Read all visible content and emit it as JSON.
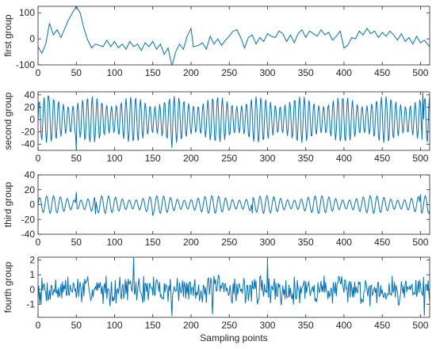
{
  "chart_data": [
    {
      "type": "line",
      "ylabel": "first group",
      "xlabel": "",
      "xlim": [
        0,
        512
      ],
      "ylim": [
        -100,
        125
      ],
      "xticks": [
        0,
        50,
        100,
        150,
        200,
        250,
        300,
        350,
        400,
        450,
        500
      ],
      "yticks": [
        -100,
        0,
        100
      ],
      "color": "#0072BD",
      "points": [
        [
          0,
          -30
        ],
        [
          5,
          -55
        ],
        [
          10,
          -20
        ],
        [
          15,
          60
        ],
        [
          20,
          15
        ],
        [
          25,
          35
        ],
        [
          30,
          5
        ],
        [
          35,
          40
        ],
        [
          40,
          75
        ],
        [
          45,
          100
        ],
        [
          50,
          125
        ],
        [
          55,
          100
        ],
        [
          60,
          40
        ],
        [
          65,
          -5
        ],
        [
          70,
          -35
        ],
        [
          75,
          -20
        ],
        [
          80,
          -25
        ],
        [
          85,
          -30
        ],
        [
          90,
          -5
        ],
        [
          95,
          -30
        ],
        [
          100,
          -10
        ],
        [
          105,
          -35
        ],
        [
          110,
          -20
        ],
        [
          115,
          -40
        ],
        [
          120,
          -10
        ],
        [
          125,
          -30
        ],
        [
          130,
          -20
        ],
        [
          135,
          -45
        ],
        [
          140,
          -15
        ],
        [
          145,
          -30
        ],
        [
          150,
          -10
        ],
        [
          155,
          -40
        ],
        [
          160,
          -20
        ],
        [
          165,
          -60
        ],
        [
          170,
          -35
        ],
        [
          175,
          -105
        ],
        [
          180,
          -50
        ],
        [
          185,
          -20
        ],
        [
          190,
          -40
        ],
        [
          195,
          10
        ],
        [
          200,
          40
        ],
        [
          203,
          -30
        ],
        [
          210,
          -25
        ],
        [
          215,
          -15
        ],
        [
          220,
          -40
        ],
        [
          225,
          10
        ],
        [
          230,
          -20
        ],
        [
          235,
          0
        ],
        [
          240,
          -25
        ],
        [
          245,
          -5
        ],
        [
          250,
          10
        ],
        [
          255,
          30
        ],
        [
          260,
          35
        ],
        [
          265,
          5
        ],
        [
          270,
          -35
        ],
        [
          275,
          5
        ],
        [
          280,
          15
        ],
        [
          285,
          -20
        ],
        [
          290,
          5
        ],
        [
          295,
          -10
        ],
        [
          300,
          20
        ],
        [
          305,
          10
        ],
        [
          310,
          5
        ],
        [
          315,
          30
        ],
        [
          320,
          20
        ],
        [
          325,
          -10
        ],
        [
          330,
          15
        ],
        [
          335,
          -15
        ],
        [
          340,
          20
        ],
        [
          345,
          35
        ],
        [
          350,
          5
        ],
        [
          355,
          30
        ],
        [
          360,
          20
        ],
        [
          365,
          10
        ],
        [
          370,
          35
        ],
        [
          375,
          15
        ],
        [
          380,
          25
        ],
        [
          385,
          -5
        ],
        [
          390,
          10
        ],
        [
          395,
          30
        ],
        [
          400,
          -35
        ],
        [
          405,
          -25
        ],
        [
          410,
          5
        ],
        [
          415,
          0
        ],
        [
          420,
          30
        ],
        [
          425,
          15
        ],
        [
          430,
          40
        ],
        [
          435,
          20
        ],
        [
          440,
          30
        ],
        [
          445,
          5
        ],
        [
          450,
          25
        ],
        [
          455,
          10
        ],
        [
          460,
          30
        ],
        [
          465,
          15
        ],
        [
          470,
          -5
        ],
        [
          475,
          20
        ],
        [
          480,
          -10
        ],
        [
          485,
          5
        ],
        [
          490,
          -20
        ],
        [
          495,
          10
        ],
        [
          500,
          -15
        ],
        [
          505,
          -5
        ],
        [
          512,
          -30
        ]
      ]
    },
    {
      "type": "line",
      "ylabel": "second group",
      "xlabel": "",
      "xlim": [
        0,
        512
      ],
      "ylim": [
        -50,
        45
      ],
      "xticks": [
        0,
        50,
        100,
        150,
        200,
        250,
        300,
        350,
        400,
        450,
        500
      ],
      "yticks": [
        -40,
        -20,
        0,
        20,
        40
      ],
      "color": "#0072BD",
      "signal": {
        "period": 6.3,
        "base_amplitude": 30,
        "modulation_amplitude": 8,
        "modulation_period": 55,
        "x_start": 0,
        "x_end": 512,
        "step": 1
      },
      "spikes": [
        [
          13,
          38
        ],
        [
          50,
          -48
        ],
        [
          175,
          -46
        ],
        [
          503,
          44
        ]
      ]
    },
    {
      "type": "line",
      "ylabel": "third group",
      "xlabel": "",
      "xlim": [
        0,
        512
      ],
      "ylim": [
        -40,
        40
      ],
      "xticks": [
        0,
        50,
        100,
        150,
        200,
        250,
        300,
        350,
        400,
        450,
        500
      ],
      "yticks": [
        -40,
        -20,
        0,
        20,
        40
      ],
      "color": "#0072BD",
      "signal": {
        "period": 9,
        "base_amplitude": 9,
        "modulation_amplitude": 3,
        "modulation_period": 70,
        "x_start": 0,
        "x_end": 512,
        "step": 1
      },
      "spikes": [
        [
          50,
          17
        ],
        [
          75,
          -13
        ],
        [
          150,
          -15
        ],
        [
          280,
          -12
        ],
        [
          500,
          14
        ]
      ]
    },
    {
      "type": "line",
      "ylabel": "fourth group",
      "xlabel": "Sampling points",
      "xlim": [
        0,
        512
      ],
      "ylim": [
        -1.9,
        2.2
      ],
      "xticks": [
        0,
        50,
        100,
        150,
        200,
        250,
        300,
        350,
        400,
        450,
        500
      ],
      "yticks": [
        -1,
        0,
        1,
        2
      ],
      "color": "#0072BD",
      "signal": {
        "noise_amplitude": 0.9,
        "seed": 7,
        "x_start": 0,
        "x_end": 512,
        "step": 1
      },
      "spikes": [
        [
          125,
          2.2
        ],
        [
          175,
          -1.8
        ],
        [
          228,
          -1.7
        ],
        [
          300,
          2.0
        ],
        [
          505,
          -1.8
        ]
      ]
    }
  ]
}
